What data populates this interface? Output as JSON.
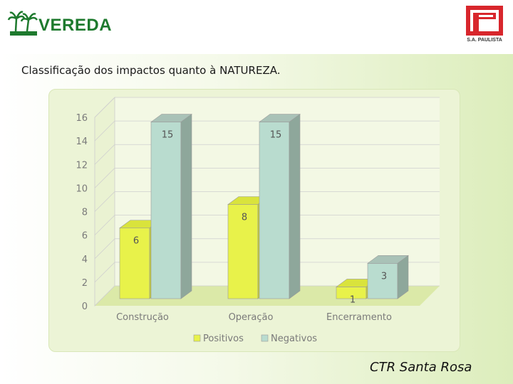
{
  "header": {
    "left_logo_text": "VEREDA",
    "right_logo_text": "S.A. PAULISTA"
  },
  "slide": {
    "subtitle": "Classificação dos impactos quanto à NATUREZA.",
    "footer": "CTR Santa Rosa"
  },
  "colors": {
    "positivos": "#e8f24a",
    "negativos": "#b9dccf",
    "axis_text": "#7a7a7a"
  },
  "chart_data": {
    "type": "bar",
    "categories": [
      "Construção",
      "Operação",
      "Encerramento"
    ],
    "series": [
      {
        "name": "Positivos",
        "values": [
          6,
          8,
          1
        ]
      },
      {
        "name": "Negativos",
        "values": [
          15,
          15,
          3
        ]
      }
    ],
    "yticks": [
      "0",
      "2",
      "4",
      "6",
      "8",
      "10",
      "12",
      "14",
      "16"
    ],
    "ylim": [
      0,
      16
    ],
    "grid": true,
    "legend": "bottom"
  }
}
